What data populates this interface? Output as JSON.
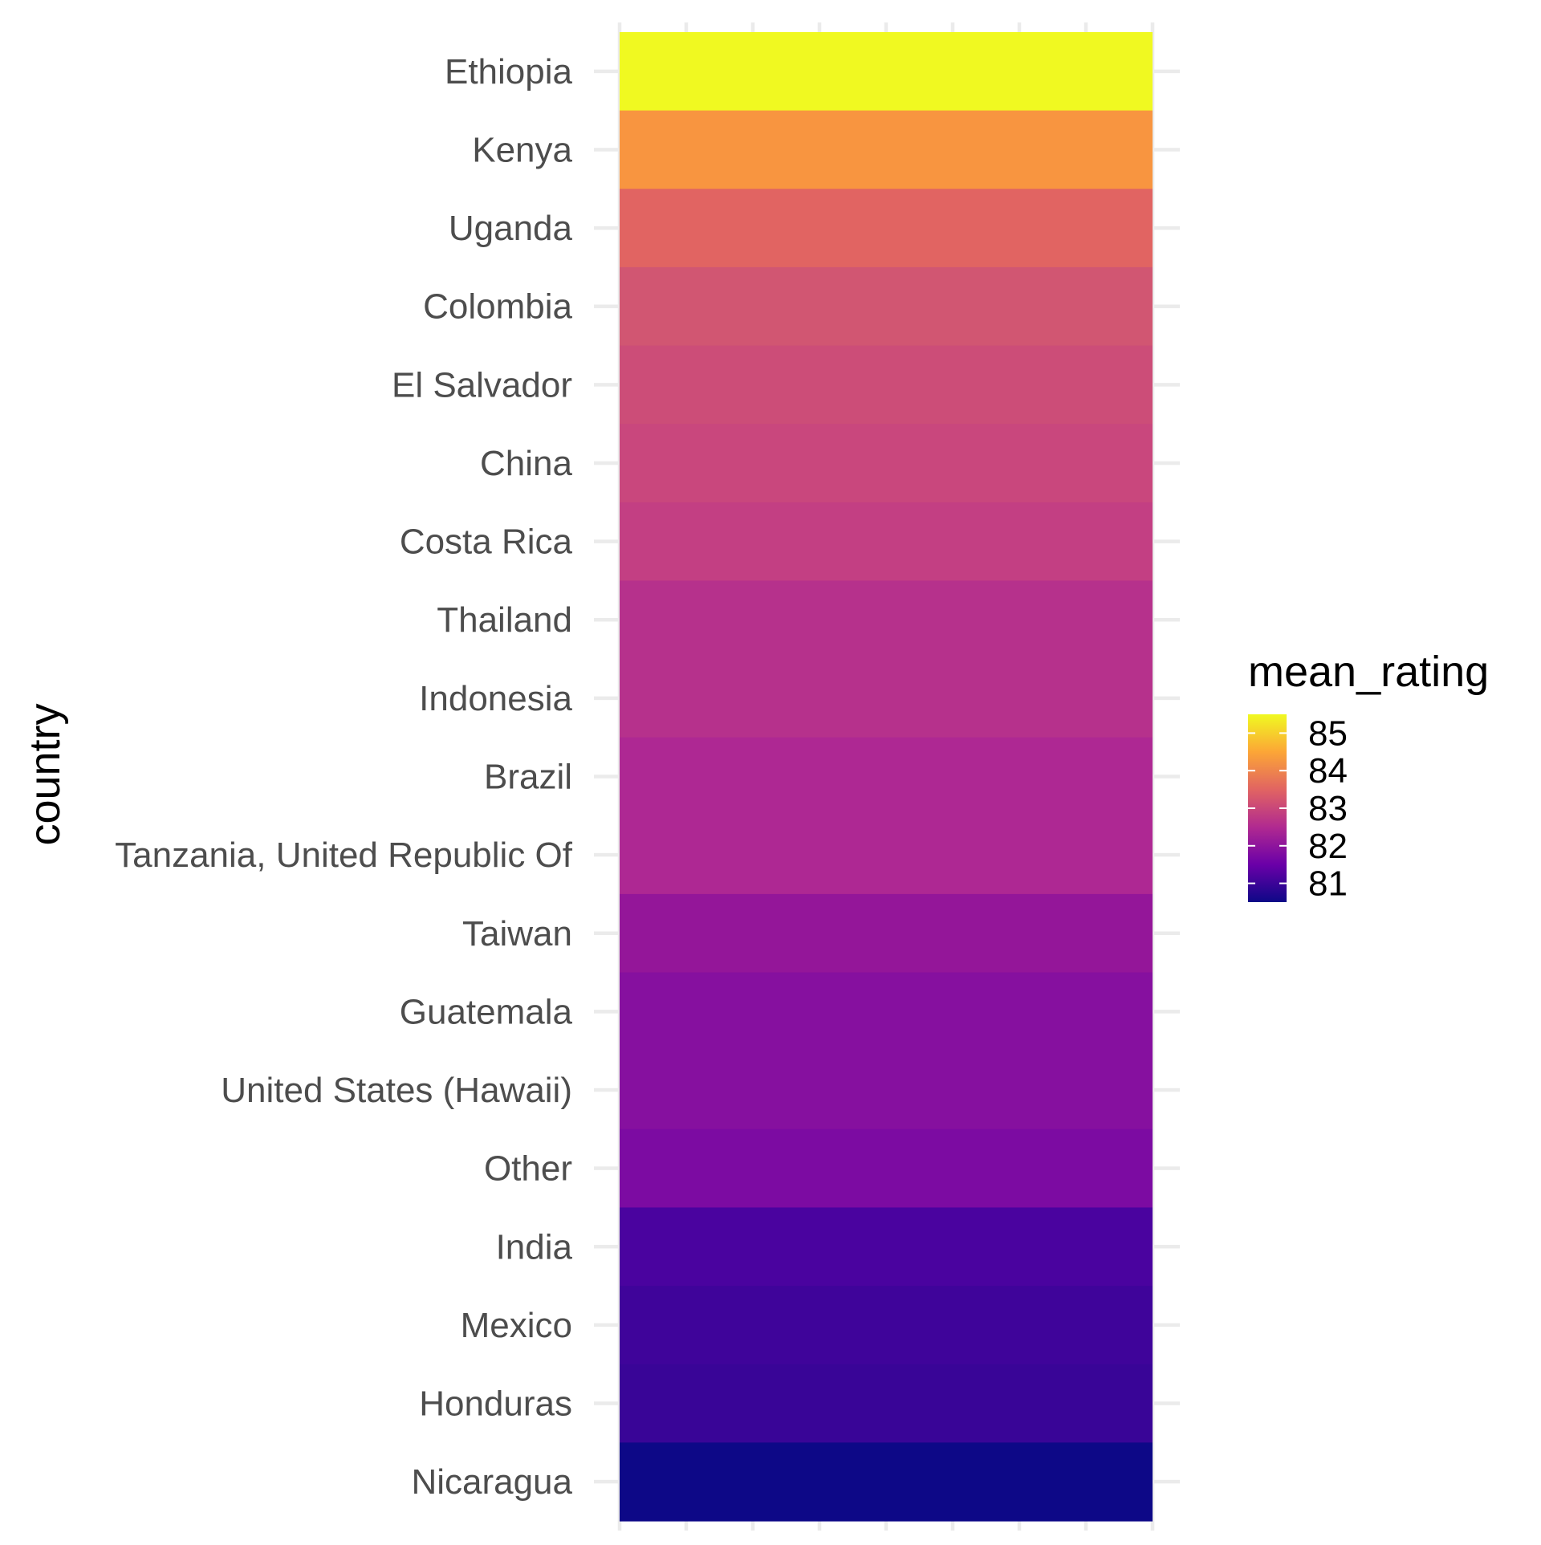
{
  "chart_data": {
    "type": "heatmap",
    "ylabel": "country",
    "xlabel": "",
    "legend": {
      "title": "mean_rating",
      "position": "right",
      "ticks": [
        81,
        82,
        83,
        84,
        85
      ],
      "range": [
        80.5,
        85.5
      ]
    },
    "grid": true,
    "categories": [
      "Ethiopia",
      "Kenya",
      "Uganda",
      "Colombia",
      "El Salvador",
      "China",
      "Costa Rica",
      "Thailand",
      "Indonesia",
      "Brazil",
      "Tanzania, United Republic Of",
      "Taiwan",
      "Guatemala",
      "United States (Hawaii)",
      "Other",
      "India",
      "Mexico",
      "Honduras",
      "Nicaragua"
    ],
    "values": [
      85.4,
      84.2,
      83.4,
      83.1,
      83.0,
      82.95,
      82.85,
      82.6,
      82.6,
      82.45,
      82.45,
      82.1,
      81.9,
      81.9,
      81.75,
      81.15,
      81.0,
      80.95,
      80.55
    ],
    "colors": [
      "#f0f921",
      "#f89540",
      "#e16462",
      "#d15672",
      "#cc4d78",
      "#c9477d",
      "#c33f83",
      "#b6318c",
      "#b6318c",
      "#ae2893",
      "#ae2893",
      "#941699",
      "#86109f",
      "#86109f",
      "#7c0ba2",
      "#4a039f",
      "#3f049a",
      "#390597",
      "#0d0887"
    ],
    "colorscale": [
      "#0d0887",
      "#6a00a8",
      "#b12a90",
      "#e16462",
      "#fca636",
      "#f0f921"
    ]
  }
}
